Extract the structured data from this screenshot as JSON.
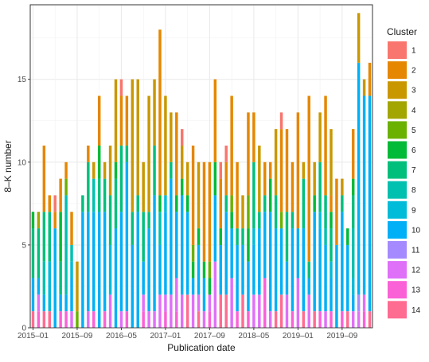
{
  "chart_data": {
    "type": "bar",
    "stacked": true,
    "xlabel": "Publication date",
    "ylabel": "8–K number",
    "ylim": [
      0,
      19.5
    ],
    "y_ticks": [
      0,
      5,
      10,
      15
    ],
    "x_ticks": [
      {
        "label": "2015–01",
        "at": 0.5
      },
      {
        "label": "2015–09",
        "at": 8.5
      },
      {
        "label": "2016–05",
        "at": 16.5
      },
      {
        "label": "2017–01",
        "at": 24.5
      },
      {
        "label": "2017–09",
        "at": 32.5
      },
      {
        "label": "2018–05",
        "at": 40.5
      },
      {
        "label": "2019–01",
        "at": 48.5
      },
      {
        "label": "2019–09",
        "at": 56.5
      }
    ],
    "grid": true,
    "legend": {
      "title": "Cluster",
      "position": "right",
      "entries": [
        "1",
        "2",
        "3",
        "4",
        "5",
        "6",
        "7",
        "8",
        "9",
        "10",
        "11",
        "12",
        "13",
        "14"
      ],
      "colors": [
        "#F8766D",
        "#E58700",
        "#C99800",
        "#A3A500",
        "#6BB100",
        "#00BA38",
        "#00BF7D",
        "#00C0AF",
        "#00BCD8",
        "#00B0F6",
        "#A58AFF",
        "#DF70F8",
        "#FB61D7",
        "#FF6C91"
      ]
    },
    "series_order_bottom_to_top": [
      "14",
      "13",
      "12",
      "11",
      "10",
      "9",
      "8",
      "7",
      "6",
      "5",
      "4",
      "3",
      "2",
      "1"
    ],
    "stacks": [
      [
        [
          "14",
          1
        ],
        [
          "10",
          2
        ],
        [
          "7",
          3
        ],
        [
          "6",
          1
        ]
      ],
      [
        [
          "13",
          1
        ],
        [
          "12",
          1
        ],
        [
          "10",
          1
        ],
        [
          "7",
          3
        ],
        [
          "4",
          1
        ]
      ],
      [
        [
          "14",
          1
        ],
        [
          "10",
          1
        ],
        [
          "8",
          2
        ],
        [
          "7",
          3
        ],
        [
          "2",
          4
        ]
      ],
      [
        [
          "14",
          1
        ],
        [
          "9",
          3
        ],
        [
          "7",
          3
        ],
        [
          "2",
          1
        ]
      ],
      [
        [
          "10",
          6
        ],
        [
          "2",
          1
        ],
        [
          "1",
          1
        ]
      ],
      [
        [
          "13",
          1
        ],
        [
          "10",
          1
        ],
        [
          "7",
          2
        ],
        [
          "6",
          3
        ],
        [
          "2",
          2
        ]
      ],
      [
        [
          "13",
          1
        ],
        [
          "10",
          1
        ],
        [
          "8",
          6
        ],
        [
          "5",
          1
        ],
        [
          "2",
          1
        ]
      ],
      [
        [
          "12",
          1
        ],
        [
          "10",
          2
        ],
        [
          "9",
          1
        ],
        [
          "8",
          1
        ],
        [
          "2",
          2
        ]
      ],
      [
        [
          "5",
          1
        ],
        [
          "3",
          3
        ]
      ],
      [
        [
          "10",
          7
        ],
        [
          "7",
          1
        ]
      ],
      [
        [
          "12",
          1
        ],
        [
          "10",
          6
        ],
        [
          "7",
          3
        ],
        [
          "2",
          1
        ]
      ],
      [
        [
          "13",
          1
        ],
        [
          "10",
          6
        ],
        [
          "8",
          2
        ],
        [
          "3",
          1
        ]
      ],
      [
        [
          "10",
          7
        ],
        [
          "7",
          2
        ],
        [
          "6",
          2
        ],
        [
          "2",
          3
        ]
      ],
      [
        [
          "13",
          1
        ],
        [
          "10",
          6
        ],
        [
          "7",
          2
        ],
        [
          "3",
          1
        ]
      ],
      [
        [
          "12",
          2
        ],
        [
          "9",
          3
        ],
        [
          "7",
          3
        ],
        [
          "3",
          3
        ]
      ],
      [
        [
          "10",
          6
        ],
        [
          "7",
          3
        ],
        [
          "6",
          1
        ],
        [
          "3",
          5
        ]
      ],
      [
        [
          "12",
          1
        ],
        [
          "10",
          6
        ],
        [
          "7",
          4
        ],
        [
          "2",
          3
        ],
        [
          "1",
          1
        ]
      ],
      [
        [
          "13",
          1
        ],
        [
          "10",
          9
        ],
        [
          "7",
          1
        ],
        [
          "2",
          3
        ]
      ],
      [
        [
          "10",
          5
        ],
        [
          "7",
          2
        ],
        [
          "3",
          8
        ]
      ],
      [
        [
          "10",
          7
        ],
        [
          "7",
          1
        ],
        [
          "3",
          7
        ]
      ],
      [
        [
          "13",
          1
        ],
        [
          "12",
          1
        ],
        [
          "10",
          2
        ],
        [
          "7",
          3
        ],
        [
          "3",
          3
        ]
      ],
      [
        [
          "12",
          1
        ],
        [
          "10",
          5
        ],
        [
          "7",
          1
        ],
        [
          "3",
          7
        ]
      ],
      [
        [
          "12",
          1
        ],
        [
          "10",
          7
        ],
        [
          "7",
          3
        ],
        [
          "3",
          4
        ]
      ],
      [
        [
          "12",
          2
        ],
        [
          "10",
          3
        ],
        [
          "8",
          2
        ],
        [
          "6",
          1
        ],
        [
          "2",
          10
        ]
      ],
      [
        [
          "13",
          1
        ],
        [
          "12",
          1
        ],
        [
          "10",
          5
        ],
        [
          "9",
          1
        ],
        [
          "3",
          6
        ]
      ],
      [
        [
          "12",
          2
        ],
        [
          "10",
          7
        ],
        [
          "7",
          1
        ],
        [
          "3",
          3
        ]
      ],
      [
        [
          "13",
          1
        ],
        [
          "12",
          2
        ],
        [
          "10",
          4
        ],
        [
          "6",
          1
        ],
        [
          "2",
          5
        ]
      ],
      [
        [
          "12",
          2
        ],
        [
          "10",
          6
        ],
        [
          "6",
          1
        ],
        [
          "3",
          2
        ],
        [
          "1",
          1
        ]
      ],
      [
        [
          "14",
          2
        ],
        [
          "10",
          5
        ],
        [
          "6",
          1
        ],
        [
          "3",
          2
        ]
      ],
      [
        [
          "12",
          2
        ],
        [
          "10",
          1
        ],
        [
          "6",
          1
        ],
        [
          "5",
          1
        ],
        [
          "2",
          6
        ]
      ],
      [
        [
          "14",
          1
        ],
        [
          "12",
          1
        ],
        [
          "10",
          3
        ],
        [
          "6",
          1
        ],
        [
          "3",
          4
        ]
      ],
      [
        [
          "12",
          1
        ],
        [
          "10",
          2
        ],
        [
          "6",
          1
        ],
        [
          "2",
          6
        ]
      ],
      [
        [
          "13",
          1
        ],
        [
          "12",
          1
        ],
        [
          "6",
          1
        ],
        [
          "5",
          1
        ],
        [
          "2",
          6
        ]
      ],
      [
        [
          "12",
          4
        ],
        [
          "10",
          4
        ],
        [
          "6",
          2
        ],
        [
          "2",
          5
        ]
      ],
      [
        [
          "14",
          2
        ],
        [
          "10",
          3
        ],
        [
          "6",
          1
        ],
        [
          "2",
          3
        ],
        [
          "1",
          1
        ]
      ],
      [
        [
          "14",
          2
        ],
        [
          "10",
          5
        ],
        [
          "7",
          1
        ],
        [
          "2",
          2
        ],
        [
          "1",
          1
        ]
      ],
      [
        [
          "12",
          3
        ],
        [
          "10",
          3
        ],
        [
          "6",
          1
        ],
        [
          "5",
          1
        ],
        [
          "2",
          6
        ]
      ],
      [
        [
          "13",
          1
        ],
        [
          "10",
          4
        ],
        [
          "7",
          1
        ],
        [
          "2",
          4
        ]
      ],
      [
        [
          "14",
          2
        ],
        [
          "10",
          3
        ],
        [
          "7",
          1
        ],
        [
          "3",
          2
        ]
      ],
      [
        [
          "13",
          1
        ],
        [
          "10",
          3
        ],
        [
          "6",
          2
        ],
        [
          "5",
          2
        ],
        [
          "2",
          5
        ]
      ],
      [
        [
          "12",
          2
        ],
        [
          "10",
          3
        ],
        [
          "9",
          1
        ],
        [
          "7",
          4
        ],
        [
          "2",
          3
        ]
      ],
      [
        [
          "12",
          2
        ],
        [
          "10",
          4
        ],
        [
          "7",
          1
        ],
        [
          "3",
          4
        ]
      ],
      [
        [
          "13",
          3
        ],
        [
          "10",
          4
        ],
        [
          "7",
          1
        ],
        [
          "2",
          2
        ]
      ],
      [
        [
          "12",
          1
        ],
        [
          "10",
          6
        ],
        [
          "6",
          2
        ],
        [
          "2",
          1
        ]
      ],
      [
        [
          "14",
          1
        ],
        [
          "10",
          5
        ],
        [
          "7",
          2
        ],
        [
          "3",
          4
        ]
      ],
      [
        [
          "14",
          2
        ],
        [
          "10",
          4
        ],
        [
          "5",
          1
        ],
        [
          "2",
          5
        ],
        [
          "1",
          1
        ]
      ],
      [
        [
          "12",
          2
        ],
        [
          "10",
          2
        ],
        [
          "7",
          3
        ],
        [
          "2",
          5
        ]
      ],
      [
        [
          "13",
          1
        ],
        [
          "10",
          5
        ],
        [
          "7",
          1
        ],
        [
          "2",
          3
        ]
      ],
      [
        [
          "12",
          3
        ],
        [
          "10",
          3
        ],
        [
          "2",
          7
        ]
      ],
      [
        [
          "14",
          1
        ],
        [
          "10",
          5
        ],
        [
          "7",
          3
        ],
        [
          "3",
          1
        ]
      ],
      [
        [
          "12",
          2
        ],
        [
          "10",
          1
        ],
        [
          "7",
          1
        ],
        [
          "2",
          10
        ]
      ],
      [
        [
          "14",
          1
        ],
        [
          "10",
          6
        ],
        [
          "6",
          1
        ],
        [
          "3",
          2
        ]
      ],
      [
        [
          "13",
          1
        ],
        [
          "10",
          5
        ],
        [
          "9",
          1
        ],
        [
          "7",
          3
        ],
        [
          "3",
          3
        ]
      ],
      [
        [
          "12",
          1
        ],
        [
          "10",
          4
        ],
        [
          "8",
          1
        ],
        [
          "7",
          2
        ],
        [
          "2",
          6
        ]
      ],
      [
        [
          "13",
          1
        ],
        [
          "10",
          2
        ],
        [
          "9",
          1
        ],
        [
          "7",
          2
        ],
        [
          "6",
          1
        ],
        [
          "2",
          1
        ],
        [
          "3",
          4
        ]
      ],
      [
        [
          "10",
          5
        ],
        [
          "2",
          4
        ]
      ],
      [
        [
          "13",
          1
        ],
        [
          "10",
          6
        ],
        [
          "7",
          1
        ],
        [
          "3",
          1
        ]
      ],
      [
        [
          "14",
          1
        ],
        [
          "10",
          4
        ],
        [
          "6",
          1
        ]
      ],
      [
        [
          "12",
          1
        ],
        [
          "10",
          1
        ],
        [
          "9",
          1
        ],
        [
          "8",
          3
        ],
        [
          "7",
          2
        ],
        [
          "6",
          1
        ],
        [
          "2",
          3
        ]
      ],
      [
        [
          "12",
          1
        ],
        [
          "11",
          1
        ],
        [
          "10",
          14
        ],
        [
          "3",
          3
        ]
      ],
      [
        [
          "13",
          1
        ],
        [
          "12",
          1
        ],
        [
          "10",
          12
        ],
        [
          "3",
          1
        ]
      ],
      [
        [
          "14",
          1
        ],
        [
          "10",
          13
        ],
        [
          "2",
          2
        ]
      ]
    ]
  }
}
